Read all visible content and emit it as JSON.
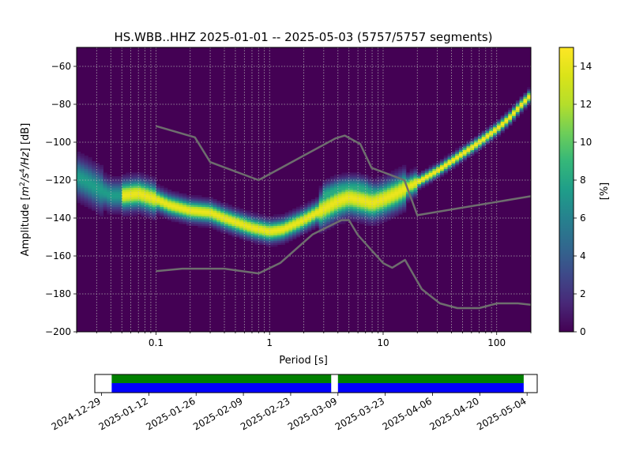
{
  "chart_data": {
    "type": "heatmap",
    "title": "HS.WBB..HHZ   2025-01-01 -- 2025-05-03  (5757/5757 segments)",
    "xlabel": "Period [s]",
    "ylabel_prefix": "Amplitude [",
    "ylabel_unit_tex": "m2/s4/Hz",
    "ylabel_suffix": "] [dB]",
    "x_scale": "log",
    "xlim": [
      0.02,
      200
    ],
    "ylim": [
      -200,
      -50
    ],
    "x_ticks": [
      {
        "value": 0.1,
        "label": "0.1"
      },
      {
        "value": 1,
        "label": "1"
      },
      {
        "value": 10,
        "label": "10"
      },
      {
        "value": 100,
        "label": "100"
      }
    ],
    "y_ticks": [
      {
        "value": -60,
        "label": "−60"
      },
      {
        "value": -80,
        "label": "−80"
      },
      {
        "value": -100,
        "label": "−100"
      },
      {
        "value": -120,
        "label": "−120"
      },
      {
        "value": -140,
        "label": "−140"
      },
      {
        "value": -160,
        "label": "−160"
      },
      {
        "value": -180,
        "label": "−180"
      },
      {
        "value": -200,
        "label": "−200"
      }
    ],
    "grid": true,
    "colormap": "viridis",
    "colorbar": {
      "label": "[%]",
      "range": [
        0,
        15
      ],
      "ticks": [
        {
          "value": 0,
          "label": "0"
        },
        {
          "value": 2,
          "label": "2"
        },
        {
          "value": 4,
          "label": "4"
        },
        {
          "value": 6,
          "label": "6"
        },
        {
          "value": 8,
          "label": "8"
        },
        {
          "value": 10,
          "label": "10"
        },
        {
          "value": 12,
          "label": "12"
        },
        {
          "value": 14,
          "label": "14"
        }
      ]
    },
    "psd_mode": {
      "period": [
        0.02,
        0.025,
        0.03,
        0.04,
        0.05,
        0.07,
        0.1,
        0.13,
        0.2,
        0.3,
        0.4,
        0.5,
        0.7,
        1,
        1.3,
        2,
        3,
        4,
        5,
        7,
        8,
        10,
        13,
        16,
        20,
        30,
        40,
        50,
        70,
        100,
        130,
        160,
        200
      ],
      "db": [
        -118,
        -121,
        -124,
        -128,
        -128,
        -127,
        -130,
        -133,
        -136,
        -137,
        -140,
        -142,
        -145,
        -147,
        -146,
        -141,
        -135,
        -131,
        -129,
        -131,
        -132,
        -130,
        -127,
        -124,
        -121,
        -115,
        -110,
        -106,
        -100,
        -93,
        -87,
        -81,
        -75
      ]
    },
    "secondary_band": {
      "period": [
        3,
        4,
        5,
        6,
        7,
        8,
        10,
        12
      ],
      "db": [
        -128,
        -125,
        -124,
        -124,
        -125,
        -127,
        -128,
        -129
      ]
    },
    "noise_models": {
      "high": {
        "period": [
          0.1,
          0.22,
          0.3,
          0.8,
          3.8,
          4.6,
          6.3,
          7.9,
          15.4,
          20,
          200
        ],
        "db": [
          -91.5,
          -97.4,
          -110.5,
          -120,
          -98,
          -96.5,
          -101,
          -113.5,
          -120,
          -138.5,
          -128.5
        ]
      },
      "low": {
        "period": [
          0.1,
          0.17,
          0.4,
          0.8,
          1.24,
          2.4,
          4.3,
          5,
          6,
          10,
          12,
          15.6,
          21.9,
          31.6,
          45,
          70,
          101,
          154,
          200
        ],
        "db": [
          -168,
          -166.7,
          -166.7,
          -169.2,
          -163.7,
          -148.6,
          -141.1,
          -141.1,
          -149,
          -163.8,
          -166.2,
          -162.1,
          -177.5,
          -185,
          -187.5,
          -187.5,
          -185,
          -185,
          -185.7
        ]
      }
    },
    "coverage": {
      "date_ticks": [
        "2024-12-29",
        "2025-01-12",
        "2025-01-26",
        "2025-02-09",
        "2025-02-23",
        "2025-03-09",
        "2025-03-23",
        "2025-04-06",
        "2025-04-20",
        "2025-05-04"
      ],
      "range": [
        "2024-12-27",
        "2025-05-07"
      ],
      "gap": [
        "2025-03-07",
        "2025-03-09"
      ],
      "segments": [
        "2025-01-01",
        "2025-05-03"
      ],
      "colors": {
        "data": "#0000ff",
        "psd": "#008000",
        "gap": "#ffffff"
      }
    },
    "colors": {
      "background": "#440154",
      "noise_model": "#6e6e6e",
      "grid": "#b7b7b7"
    }
  }
}
